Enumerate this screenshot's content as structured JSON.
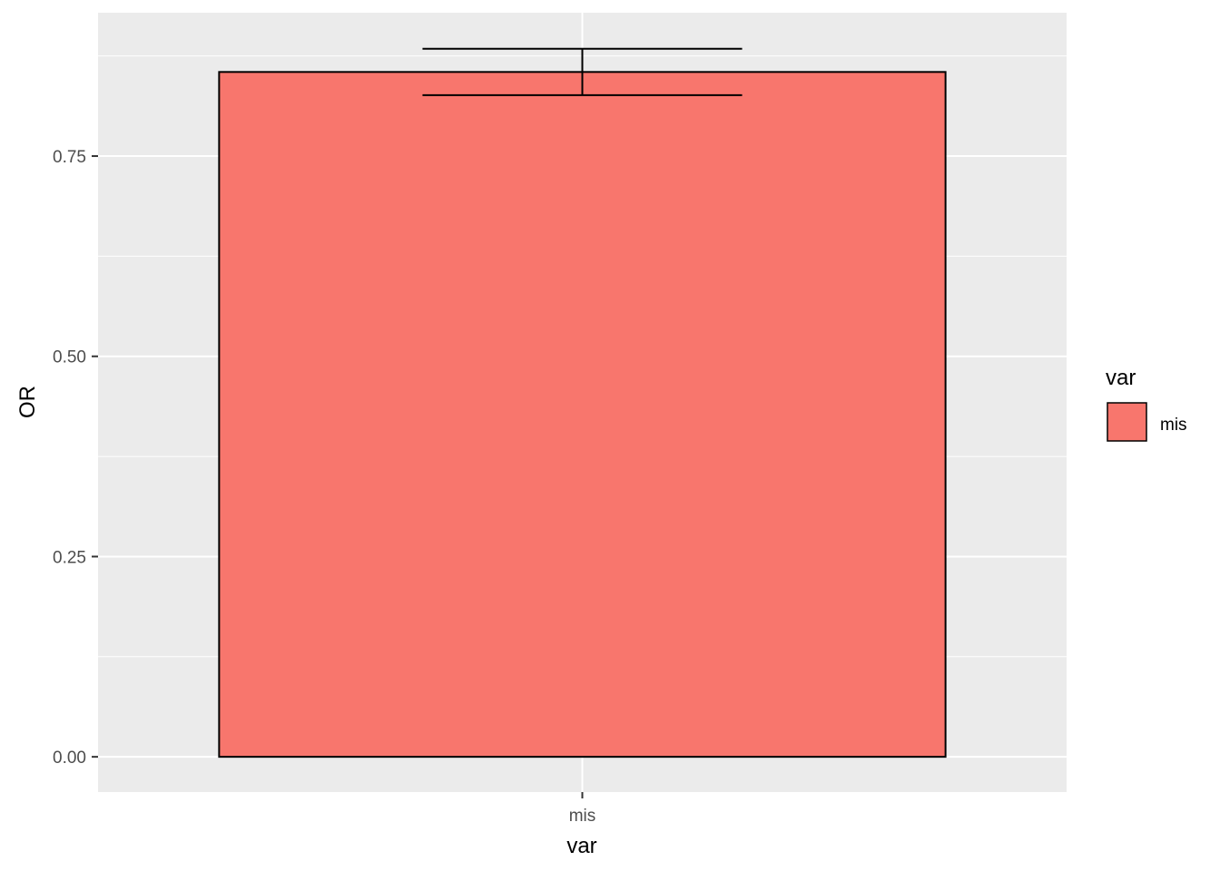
{
  "chart_data": {
    "type": "bar",
    "categories": [
      "mis"
    ],
    "values": [
      0.855
    ],
    "error_bars": [
      {
        "lower": 0.826,
        "upper": 0.884
      }
    ],
    "xlabel": "var",
    "ylabel": "OR",
    "ylim": [
      -0.044,
      0.929
    ],
    "yticks": [
      0.0,
      0.25,
      0.5,
      0.75
    ],
    "ytick_labels": [
      "0.00",
      "0.25",
      "0.50",
      "0.75"
    ],
    "grid": true,
    "legend": {
      "title": "var",
      "placement": "right",
      "items": [
        {
          "label": "mis",
          "color": "#F8766D"
        }
      ]
    },
    "colors": {
      "panel_background": "#EBEBEB",
      "grid": "#FFFFFF",
      "bar_fill": "#F8766D",
      "bar_outline": "#000000"
    }
  }
}
